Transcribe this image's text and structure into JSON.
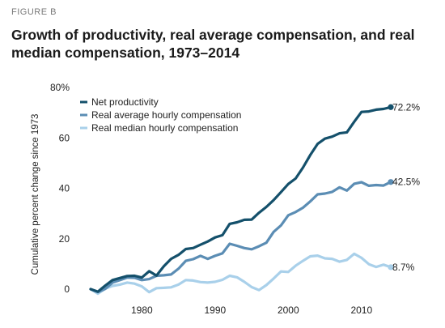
{
  "figure_label": "FIGURE B",
  "title": "Growth of productivity, real average compensation, and real median compensation, 1973–2014",
  "chart_data": {
    "type": "line",
    "title": "Growth of productivity, real average compensation, and real median compensation, 1973–2014",
    "xlabel": "",
    "ylabel": "Cumulative percent change since 1973",
    "xlim": [
      1973,
      2014
    ],
    "ylim": [
      0,
      80
    ],
    "x_ticks": [
      1980,
      1990,
      2000,
      2010
    ],
    "y_ticks": [
      0,
      20,
      40,
      60,
      80
    ],
    "y_tick_labels": [
      "0",
      "20",
      "40",
      "60",
      "80%"
    ],
    "grid": false,
    "legend_position": "top-left",
    "x": [
      1973,
      1974,
      1975,
      1976,
      1977,
      1978,
      1979,
      1980,
      1981,
      1982,
      1983,
      1984,
      1985,
      1986,
      1987,
      1988,
      1989,
      1990,
      1991,
      1992,
      1993,
      1994,
      1995,
      1996,
      1997,
      1998,
      1999,
      2000,
      2001,
      2002,
      2003,
      2004,
      2005,
      2006,
      2007,
      2008,
      2009,
      2010,
      2011,
      2012,
      2013,
      2014
    ],
    "series": [
      {
        "name": "Net productivity",
        "color": "#14506b",
        "end_label": "72.2%",
        "values": [
          0,
          -1.0,
          1.4,
          3.6,
          4.4,
          5.2,
          5.3,
          4.6,
          7.1,
          5.4,
          9.1,
          12.0,
          13.6,
          15.9,
          16.3,
          17.6,
          18.9,
          20.5,
          21.4,
          25.9,
          26.5,
          27.5,
          27.6,
          30.3,
          32.6,
          35.3,
          38.5,
          41.7,
          43.9,
          48.2,
          53.2,
          57.6,
          59.7,
          60.5,
          61.8,
          62.2,
          66.4,
          70.3,
          70.5,
          71.2,
          71.5,
          72.2
        ]
      },
      {
        "name": "Real average hourly compensation",
        "color": "#5b8db4",
        "end_label": "42.5%",
        "values": [
          0,
          -1.2,
          0.1,
          2.6,
          3.6,
          4.6,
          4.5,
          3.6,
          4.0,
          5.3,
          5.5,
          5.8,
          8.1,
          11.2,
          11.9,
          13.2,
          12.0,
          13.2,
          14.2,
          18.0,
          17.2,
          16.3,
          15.8,
          17.0,
          18.4,
          22.7,
          25.3,
          29.3,
          30.6,
          32.3,
          34.8,
          37.6,
          37.9,
          38.6,
          40.4,
          39.1,
          41.8,
          42.4,
          41.0,
          41.3,
          41.1,
          42.5
        ]
      },
      {
        "name": "Real median hourly compensation",
        "color": "#a9d0ea",
        "end_label": "8.7%",
        "values": [
          0,
          -1.8,
          0.2,
          1.3,
          1.8,
          2.6,
          2.2,
          1.1,
          -1.2,
          0.4,
          0.5,
          0.7,
          1.8,
          3.6,
          3.4,
          2.8,
          2.6,
          2.9,
          3.7,
          5.3,
          4.7,
          2.9,
          0.8,
          -0.4,
          1.6,
          4.2,
          7.0,
          6.8,
          9.3,
          11.2,
          13.0,
          13.3,
          12.2,
          12.0,
          10.9,
          11.6,
          14.0,
          12.4,
          9.9,
          8.8,
          9.7,
          8.7
        ]
      }
    ]
  }
}
